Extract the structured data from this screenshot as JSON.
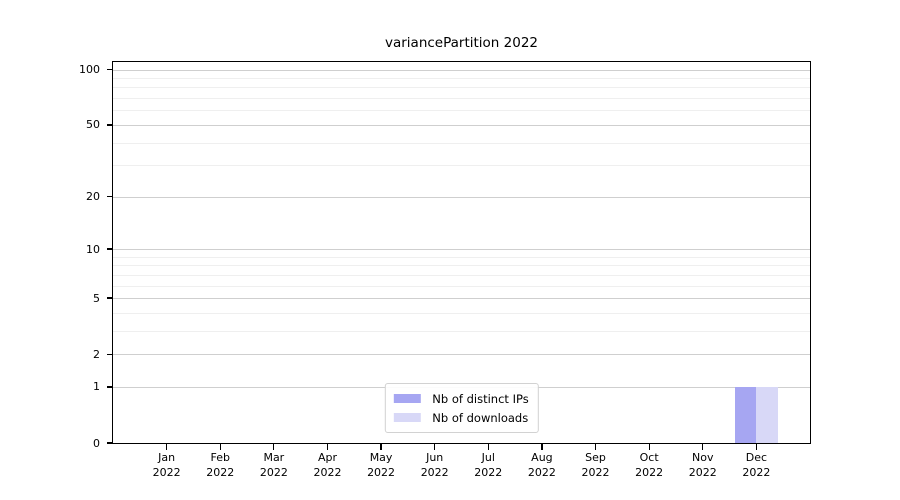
{
  "chart_data": {
    "type": "bar",
    "title": "variancePartition 2022",
    "categories": [
      "Jan",
      "Feb",
      "Mar",
      "Apr",
      "May",
      "Jun",
      "Jul",
      "Aug",
      "Sep",
      "Oct",
      "Nov",
      "Dec"
    ],
    "category_year": "2022",
    "series": [
      {
        "name": "Nb of distinct IPs",
        "color": "#a6a6f2",
        "values": [
          0,
          0,
          0,
          0,
          0,
          0,
          0,
          0,
          0,
          0,
          0,
          1
        ]
      },
      {
        "name": "Nb of downloads",
        "color": "#d8d8f7",
        "values": [
          0,
          0,
          0,
          0,
          0,
          0,
          0,
          0,
          0,
          0,
          0,
          1
        ]
      }
    ],
    "xlabel": "",
    "ylabel": "",
    "yscale": "log1p",
    "ylim": [
      0,
      110
    ],
    "yticks": [
      0,
      1,
      2,
      5,
      10,
      20,
      50,
      100
    ],
    "yticks_minor": [
      3,
      4,
      6,
      7,
      8,
      9,
      30,
      40,
      60,
      70,
      80,
      90
    ],
    "grid": true,
    "legend_position": "lower center",
    "colors": {
      "grid_major": "#cfcfcf",
      "grid_minor": "#efefef",
      "spine": "#000000",
      "legend_border": "#d2d2d2",
      "text": "#000000"
    }
  }
}
